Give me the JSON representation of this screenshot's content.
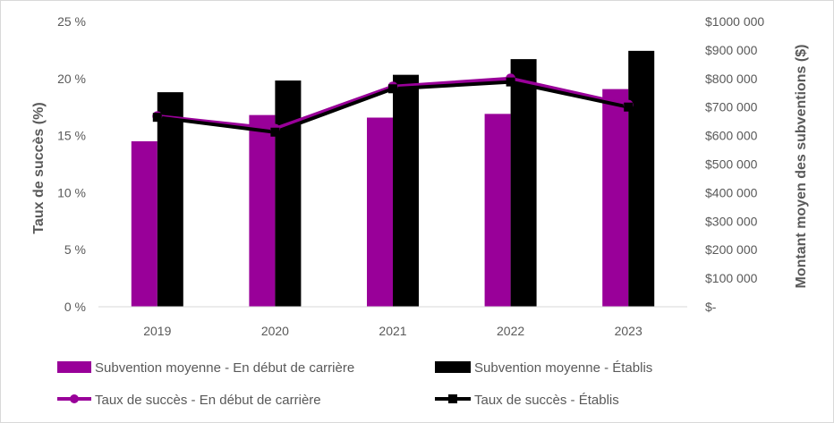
{
  "chart_data": {
    "type": "bar",
    "categories": [
      "2019",
      "2020",
      "2021",
      "2022",
      "2023"
    ],
    "y_left": {
      "label": "Taux de succès (%)",
      "lim": [
        0,
        25
      ],
      "tick_values": [
        0,
        5,
        10,
        15,
        20,
        25
      ],
      "tick_labels": [
        "0 %",
        "5 %",
        "10 %",
        "15 %",
        "20 %",
        "25 %"
      ]
    },
    "y_right": {
      "label": "Montant moyen des subventions ($)",
      "lim": [
        0,
        1000000
      ],
      "tick_values": [
        0,
        100000,
        200000,
        300000,
        400000,
        500000,
        600000,
        700000,
        800000,
        900000,
        1000000
      ],
      "tick_labels": [
        "$-",
        "$100 000",
        "$200 000",
        "$300 000",
        "$400 000",
        "$500 000",
        "$600 000",
        "$700 000",
        "$800 000",
        "$900 000",
        "$1000 000"
      ]
    },
    "bar_series": [
      {
        "name": "Subvention moyenne - En début de carrière",
        "color": "#990099",
        "axis": "right",
        "values": [
          580000,
          672000,
          663000,
          676000,
          763000
        ]
      },
      {
        "name": "Subvention moyenne - Établis",
        "color": "#000000",
        "axis": "right",
        "values": [
          752000,
          793000,
          813000,
          868000,
          897000
        ]
      }
    ],
    "line_series": [
      {
        "name": "Taux de succès -  En début de carrière",
        "color": "#990099",
        "marker": "circle",
        "axis": "left",
        "values": [
          16.7,
          15.6,
          19.3,
          20.0,
          17.7
        ]
      },
      {
        "name": "Taux de succès - Établis",
        "color": "#000000",
        "marker": "square",
        "axis": "left",
        "values": [
          16.6,
          15.3,
          19.1,
          19.7,
          17.5
        ]
      }
    ],
    "grid": false,
    "legend_position": "bottom"
  }
}
